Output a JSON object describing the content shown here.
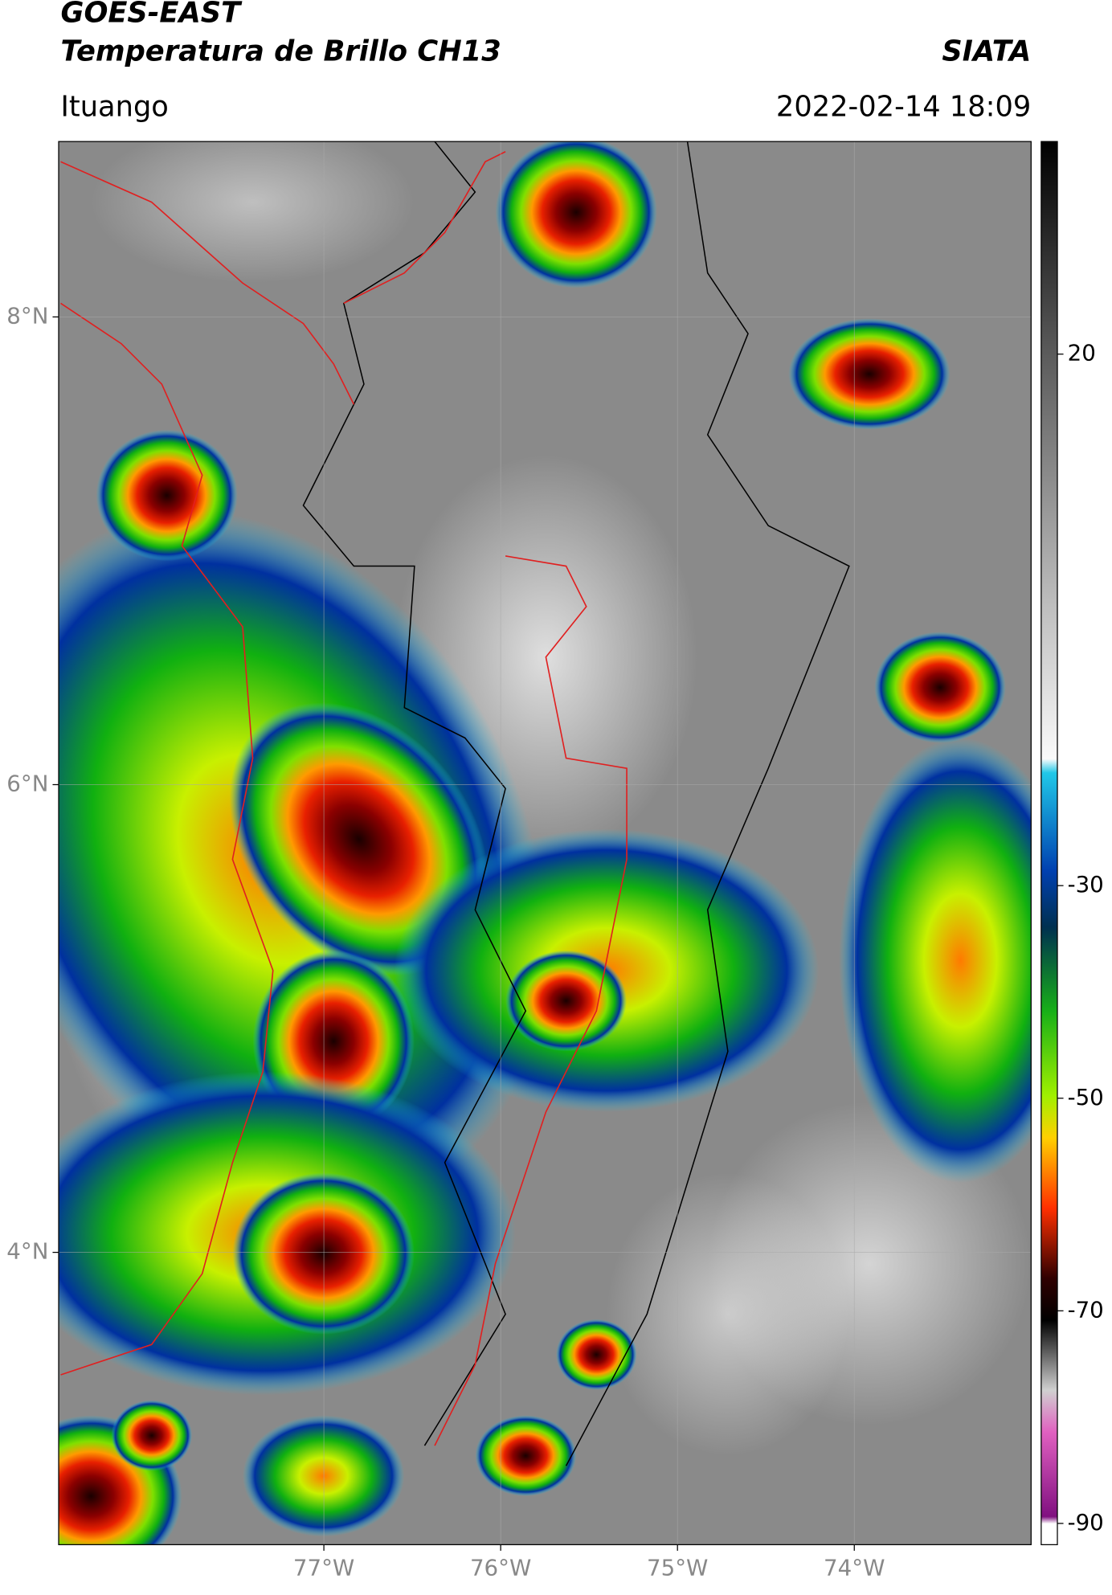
{
  "map_data": {
    "title": "GOES-EAST",
    "subtitle": "Temperatura de Brillo CH13",
    "source": "SIATA",
    "location": "Ituango",
    "datetime": "2022-02-14 18:09",
    "xlim": [
      -78.5,
      -73
    ],
    "ylim": [
      2.75,
      8.75
    ],
    "xticks": [
      {
        "value": -77,
        "label": "77°W"
      },
      {
        "value": -76,
        "label": "76°W"
      },
      {
        "value": -75,
        "label": "75°W"
      },
      {
        "value": -74,
        "label": "74°W"
      }
    ],
    "yticks": [
      {
        "value": 8,
        "label": "8°N"
      },
      {
        "value": 6,
        "label": "6°N"
      },
      {
        "value": 4,
        "label": "4°N"
      }
    ],
    "grid": true,
    "colorbar": {
      "lim": [
        -92,
        40
      ],
      "ticks": [
        20,
        -30,
        -50,
        -70,
        -90
      ]
    }
  }
}
